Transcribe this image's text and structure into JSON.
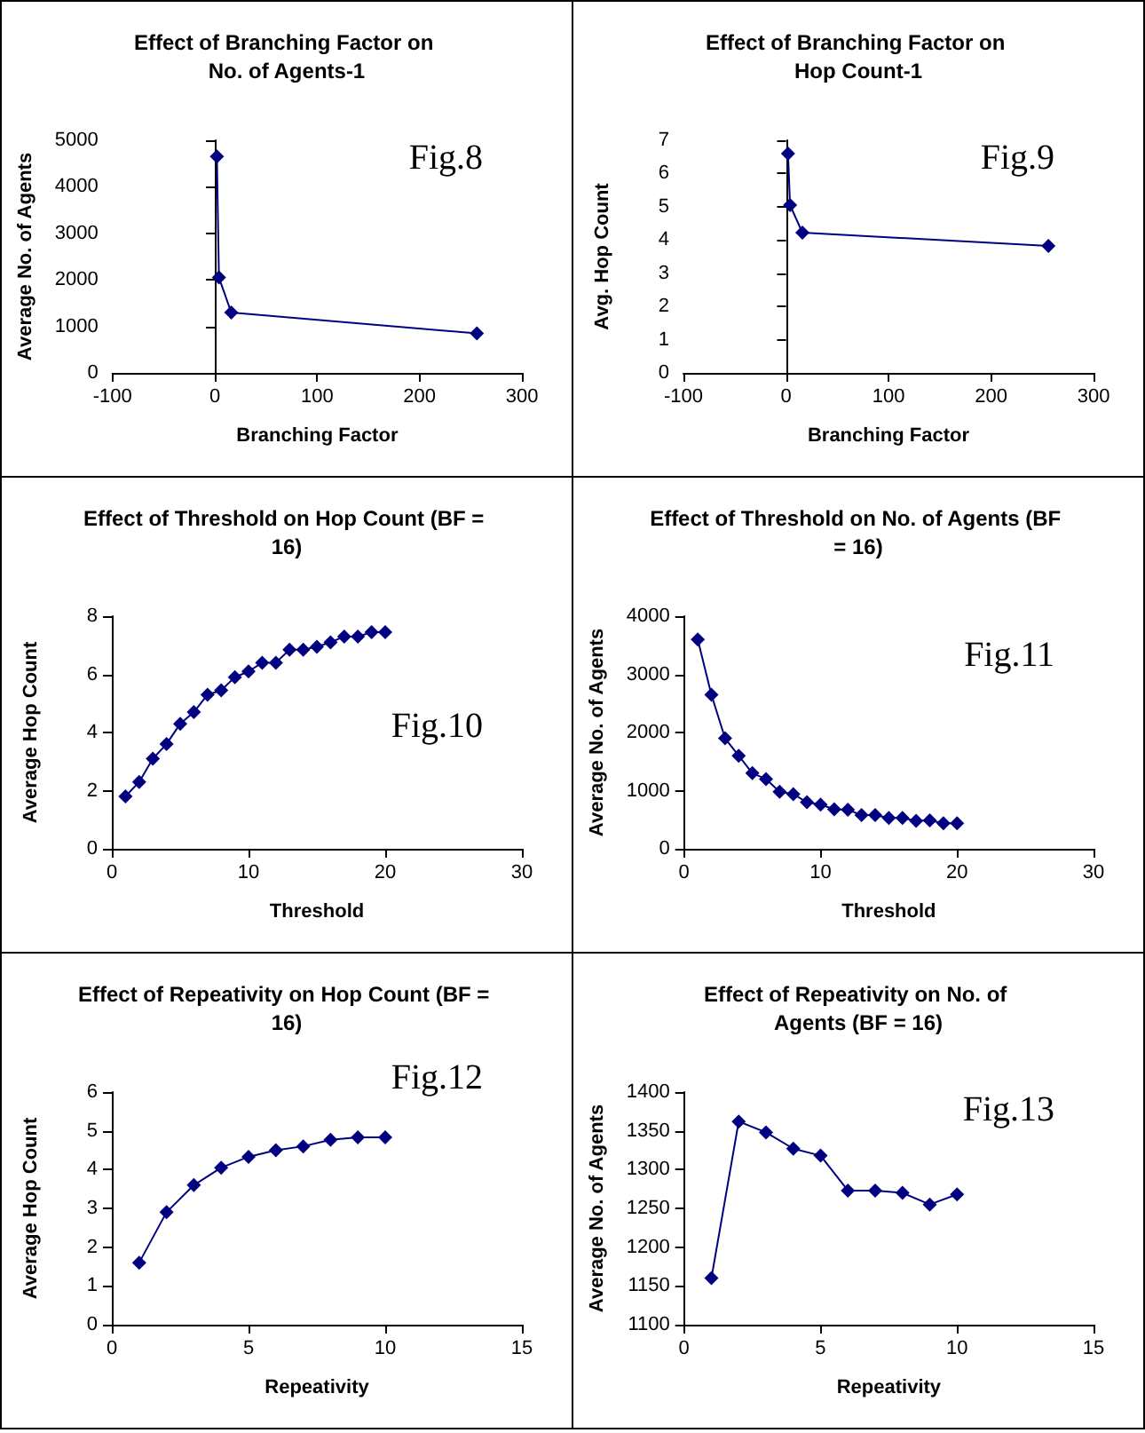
{
  "chart_data": [
    {
      "type": "line",
      "title": "Effect of Branching Factor on No. of Agents-1",
      "xlabel": "Branching Factor",
      "ylabel": "Average No. of Agents",
      "annotations": [
        "Fig.8"
      ],
      "x": [
        2,
        4,
        16,
        256
      ],
      "series": [
        {
          "color": "#000080",
          "values": [
            4650,
            2050,
            1300,
            850
          ]
        }
      ],
      "xlim": [
        -100,
        300
      ],
      "xticks": [
        -100,
        0,
        100,
        200,
        300
      ],
      "ylim": [
        0,
        5000
      ],
      "yticks": [
        0,
        1000,
        2000,
        3000,
        4000,
        5000
      ],
      "marker": "diamond",
      "line_style": "solid"
    },
    {
      "type": "line",
      "title": "Effect of Branching Factor on Hop Count-1",
      "xlabel": "Branching Factor",
      "ylabel": "Avg. Hop Count",
      "annotations": [
        "Fig.9"
      ],
      "x": [
        2,
        4,
        16,
        256
      ],
      "series": [
        {
          "color": "#000080",
          "values": [
            6.6,
            5.05,
            4.22,
            3.82
          ]
        }
      ],
      "xlim": [
        -100,
        300
      ],
      "xticks": [
        -100,
        0,
        100,
        200,
        300
      ],
      "ylim": [
        0,
        7
      ],
      "yticks": [
        0,
        1,
        2,
        3,
        4,
        5,
        6,
        7
      ],
      "marker": "diamond",
      "line_style": "solid"
    },
    {
      "type": "line",
      "title": "Effect of Threshold on Hop Count (BF = 16)",
      "xlabel": "Threshold",
      "ylabel": "Average Hop Count",
      "annotations": [
        "Fig.10"
      ],
      "x": [
        1,
        2,
        3,
        4,
        5,
        6,
        7,
        8,
        9,
        10,
        11,
        12,
        13,
        14,
        15,
        16,
        17,
        18,
        19,
        20
      ],
      "series": [
        {
          "color": "#000080",
          "values": [
            1.8,
            2.3,
            3.1,
            3.6,
            4.3,
            4.7,
            5.3,
            5.45,
            5.9,
            6.1,
            6.4,
            6.4,
            6.85,
            6.85,
            6.95,
            7.1,
            7.3,
            7.3,
            7.45,
            7.45
          ]
        }
      ],
      "xlim": [
        0,
        30
      ],
      "xticks": [
        0,
        10,
        20,
        30
      ],
      "ylim": [
        0,
        8
      ],
      "yticks": [
        0,
        2,
        4,
        6,
        8
      ],
      "marker": "diamond",
      "line_style": "solid"
    },
    {
      "type": "line",
      "title": "Effect of Threshold on No. of Agents (BF = 16)",
      "xlabel": "Threshold",
      "ylabel": "Average No. of Agents",
      "annotations": [
        "Fig.11"
      ],
      "x": [
        1,
        2,
        3,
        4,
        5,
        6,
        7,
        8,
        9,
        10,
        11,
        12,
        13,
        14,
        15,
        16,
        17,
        18,
        19,
        20
      ],
      "series": [
        {
          "color": "#000080",
          "values": [
            3600,
            2650,
            1900,
            1600,
            1300,
            1200,
            980,
            940,
            800,
            760,
            680,
            670,
            580,
            580,
            530,
            530,
            480,
            490,
            440,
            440
          ]
        }
      ],
      "xlim": [
        0,
        30
      ],
      "xticks": [
        0,
        10,
        20,
        30
      ],
      "ylim": [
        0,
        4000
      ],
      "yticks": [
        0,
        1000,
        2000,
        3000,
        4000
      ],
      "marker": "diamond",
      "line_style": "solid"
    },
    {
      "type": "line",
      "title": "Effect of Repeativity on Hop Count (BF = 16)",
      "xlabel": "Repeativity",
      "ylabel": "Average Hop Count",
      "annotations": [
        "Fig.12"
      ],
      "x": [
        1,
        2,
        3,
        4,
        5,
        6,
        7,
        8,
        9,
        10
      ],
      "series": [
        {
          "color": "#000080",
          "values": [
            1.6,
            2.9,
            3.6,
            4.05,
            4.33,
            4.5,
            4.6,
            4.77,
            4.83,
            4.83
          ]
        }
      ],
      "xlim": [
        0,
        15
      ],
      "xticks": [
        0,
        5,
        10,
        15
      ],
      "ylim": [
        0,
        6
      ],
      "yticks": [
        0,
        1,
        2,
        3,
        4,
        5,
        6
      ],
      "marker": "diamond",
      "line_style": "solid"
    },
    {
      "type": "line",
      "title": "Effect of Repeativity on No. of Agents (BF = 16)",
      "xlabel": "Repeativity",
      "ylabel": "Average No. of Agents",
      "annotations": [
        "Fig.13"
      ],
      "x": [
        1,
        2,
        3,
        4,
        5,
        6,
        7,
        8,
        9,
        10
      ],
      "series": [
        {
          "color": "#000080",
          "values": [
            1160,
            1362,
            1348,
            1327,
            1318,
            1273,
            1273,
            1270,
            1255,
            1268
          ]
        }
      ],
      "xlim": [
        0,
        15
      ],
      "xticks": [
        0,
        5,
        10,
        15
      ],
      "ylim": [
        1100,
        1400
      ],
      "yticks": [
        1100,
        1150,
        1200,
        1250,
        1300,
        1350,
        1400
      ],
      "marker": "diamond",
      "line_style": "solid"
    }
  ]
}
